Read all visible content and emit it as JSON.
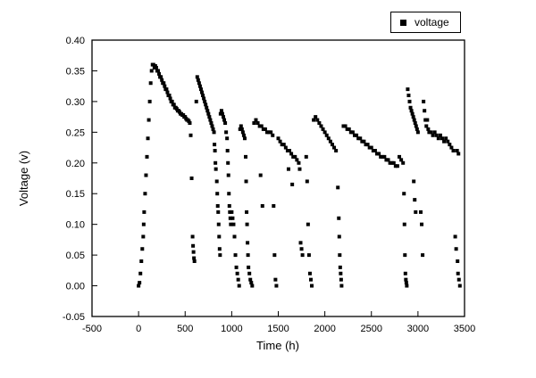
{
  "figure": {
    "background_color": "#ffffff",
    "frame_color": "#000000",
    "marker_color": "#000000"
  },
  "chart_data": {
    "type": "scatter",
    "title": "",
    "xlabel": "Time (h)",
    "ylabel": "Voltage (v)",
    "xlim": [
      -500,
      3500
    ],
    "ylim": [
      -0.05,
      0.4
    ],
    "xticks": [
      -500,
      0,
      500,
      1000,
      1500,
      2000,
      2500,
      3000,
      3500
    ],
    "yticks": [
      -0.05,
      0.0,
      0.05,
      0.1,
      0.15,
      0.2,
      0.25,
      0.3,
      0.35,
      0.4
    ],
    "grid": false,
    "legend": {
      "position": "top-right",
      "entries": [
        {
          "label": "voltage",
          "marker": "square",
          "color": "#000000"
        }
      ]
    },
    "marker": {
      "shape": "square",
      "size": 4,
      "color": "#000000"
    },
    "series": [
      {
        "name": "voltage",
        "points": [
          [
            0,
            0.0
          ],
          [
            10,
            0.005
          ],
          [
            20,
            0.02
          ],
          [
            30,
            0.04
          ],
          [
            40,
            0.06
          ],
          [
            50,
            0.08
          ],
          [
            55,
            0.1
          ],
          [
            60,
            0.12
          ],
          [
            70,
            0.15
          ],
          [
            80,
            0.18
          ],
          [
            90,
            0.21
          ],
          [
            100,
            0.24
          ],
          [
            110,
            0.27
          ],
          [
            120,
            0.3
          ],
          [
            130,
            0.33
          ],
          [
            140,
            0.35
          ],
          [
            150,
            0.36
          ],
          [
            160,
            0.36
          ],
          [
            170,
            0.355
          ],
          [
            180,
            0.358
          ],
          [
            190,
            0.355
          ],
          [
            200,
            0.35
          ],
          [
            210,
            0.35
          ],
          [
            220,
            0.345
          ],
          [
            230,
            0.34
          ],
          [
            240,
            0.34
          ],
          [
            250,
            0.335
          ],
          [
            260,
            0.33
          ],
          [
            270,
            0.33
          ],
          [
            280,
            0.325
          ],
          [
            290,
            0.32
          ],
          [
            300,
            0.32
          ],
          [
            310,
            0.315
          ],
          [
            320,
            0.31
          ],
          [
            330,
            0.31
          ],
          [
            340,
            0.305
          ],
          [
            350,
            0.3
          ],
          [
            360,
            0.3
          ],
          [
            370,
            0.295
          ],
          [
            380,
            0.295
          ],
          [
            390,
            0.29
          ],
          [
            400,
            0.29
          ],
          [
            410,
            0.288
          ],
          [
            420,
            0.285
          ],
          [
            430,
            0.285
          ],
          [
            440,
            0.283
          ],
          [
            450,
            0.28
          ],
          [
            460,
            0.28
          ],
          [
            470,
            0.278
          ],
          [
            480,
            0.278
          ],
          [
            490,
            0.275
          ],
          [
            500,
            0.275
          ],
          [
            510,
            0.272
          ],
          [
            520,
            0.27
          ],
          [
            530,
            0.27
          ],
          [
            540,
            0.268
          ],
          [
            550,
            0.265
          ],
          [
            560,
            0.245
          ],
          [
            570,
            0.175
          ],
          [
            580,
            0.08
          ],
          [
            585,
            0.065
          ],
          [
            590,
            0.055
          ],
          [
            595,
            0.045
          ],
          [
            600,
            0.04
          ],
          [
            620,
            0.3
          ],
          [
            630,
            0.34
          ],
          [
            640,
            0.335
          ],
          [
            650,
            0.33
          ],
          [
            660,
            0.325
          ],
          [
            670,
            0.32
          ],
          [
            680,
            0.315
          ],
          [
            690,
            0.31
          ],
          [
            700,
            0.305
          ],
          [
            710,
            0.3
          ],
          [
            720,
            0.295
          ],
          [
            730,
            0.29
          ],
          [
            740,
            0.285
          ],
          [
            750,
            0.28
          ],
          [
            760,
            0.275
          ],
          [
            770,
            0.27
          ],
          [
            780,
            0.265
          ],
          [
            790,
            0.26
          ],
          [
            800,
            0.255
          ],
          [
            810,
            0.25
          ],
          [
            815,
            0.23
          ],
          [
            820,
            0.22
          ],
          [
            825,
            0.2
          ],
          [
            830,
            0.19
          ],
          [
            840,
            0.17
          ],
          [
            845,
            0.15
          ],
          [
            850,
            0.13
          ],
          [
            855,
            0.12
          ],
          [
            860,
            0.1
          ],
          [
            865,
            0.08
          ],
          [
            870,
            0.06
          ],
          [
            875,
            0.05
          ],
          [
            880,
            0.28
          ],
          [
            890,
            0.285
          ],
          [
            900,
            0.28
          ],
          [
            910,
            0.275
          ],
          [
            920,
            0.27
          ],
          [
            930,
            0.265
          ],
          [
            940,
            0.25
          ],
          [
            950,
            0.24
          ],
          [
            955,
            0.22
          ],
          [
            960,
            0.2
          ],
          [
            965,
            0.18
          ],
          [
            970,
            0.15
          ],
          [
            975,
            0.13
          ],
          [
            980,
            0.12
          ],
          [
            985,
            0.11
          ],
          [
            990,
            0.1
          ],
          [
            1000,
            0.12
          ],
          [
            1010,
            0.11
          ],
          [
            1020,
            0.1
          ],
          [
            1030,
            0.08
          ],
          [
            1040,
            0.05
          ],
          [
            1050,
            0.03
          ],
          [
            1060,
            0.02
          ],
          [
            1070,
            0.01
          ],
          [
            1080,
            0.0
          ],
          [
            1090,
            0.255
          ],
          [
            1100,
            0.26
          ],
          [
            1110,
            0.255
          ],
          [
            1120,
            0.25
          ],
          [
            1130,
            0.245
          ],
          [
            1140,
            0.24
          ],
          [
            1150,
            0.21
          ],
          [
            1155,
            0.17
          ],
          [
            1160,
            0.12
          ],
          [
            1165,
            0.1
          ],
          [
            1170,
            0.07
          ],
          [
            1175,
            0.05
          ],
          [
            1180,
            0.03
          ],
          [
            1190,
            0.02
          ],
          [
            1200,
            0.01
          ],
          [
            1210,
            0.005
          ],
          [
            1220,
            0.0
          ],
          [
            1240,
            0.265
          ],
          [
            1260,
            0.27
          ],
          [
            1280,
            0.265
          ],
          [
            1300,
            0.26
          ],
          [
            1310,
            0.18
          ],
          [
            1320,
            0.26
          ],
          [
            1330,
            0.13
          ],
          [
            1340,
            0.255
          ],
          [
            1360,
            0.255
          ],
          [
            1380,
            0.25
          ],
          [
            1400,
            0.25
          ],
          [
            1420,
            0.25
          ],
          [
            1440,
            0.245
          ],
          [
            1450,
            0.13
          ],
          [
            1460,
            0.05
          ],
          [
            1470,
            0.01
          ],
          [
            1480,
            0.0
          ],
          [
            1500,
            0.24
          ],
          [
            1520,
            0.235
          ],
          [
            1540,
            0.23
          ],
          [
            1560,
            0.23
          ],
          [
            1580,
            0.225
          ],
          [
            1600,
            0.22
          ],
          [
            1610,
            0.19
          ],
          [
            1620,
            0.22
          ],
          [
            1640,
            0.215
          ],
          [
            1650,
            0.165
          ],
          [
            1660,
            0.21
          ],
          [
            1680,
            0.21
          ],
          [
            1700,
            0.205
          ],
          [
            1720,
            0.2
          ],
          [
            1730,
            0.19
          ],
          [
            1740,
            0.07
          ],
          [
            1750,
            0.06
          ],
          [
            1760,
            0.05
          ],
          [
            1800,
            0.21
          ],
          [
            1810,
            0.17
          ],
          [
            1820,
            0.1
          ],
          [
            1830,
            0.05
          ],
          [
            1840,
            0.02
          ],
          [
            1850,
            0.01
          ],
          [
            1860,
            0.0
          ],
          [
            1880,
            0.27
          ],
          [
            1900,
            0.275
          ],
          [
            1920,
            0.27
          ],
          [
            1940,
            0.265
          ],
          [
            1960,
            0.26
          ],
          [
            1980,
            0.255
          ],
          [
            2000,
            0.25
          ],
          [
            2020,
            0.245
          ],
          [
            2040,
            0.24
          ],
          [
            2060,
            0.235
          ],
          [
            2080,
            0.23
          ],
          [
            2100,
            0.225
          ],
          [
            2120,
            0.22
          ],
          [
            2140,
            0.16
          ],
          [
            2150,
            0.11
          ],
          [
            2155,
            0.08
          ],
          [
            2160,
            0.05
          ],
          [
            2165,
            0.03
          ],
          [
            2170,
            0.02
          ],
          [
            2175,
            0.01
          ],
          [
            2180,
            0.0
          ],
          [
            2200,
            0.26
          ],
          [
            2220,
            0.26
          ],
          [
            2240,
            0.255
          ],
          [
            2260,
            0.255
          ],
          [
            2280,
            0.25
          ],
          [
            2300,
            0.25
          ],
          [
            2320,
            0.245
          ],
          [
            2340,
            0.245
          ],
          [
            2360,
            0.24
          ],
          [
            2380,
            0.24
          ],
          [
            2400,
            0.235
          ],
          [
            2420,
            0.235
          ],
          [
            2440,
            0.23
          ],
          [
            2460,
            0.23
          ],
          [
            2480,
            0.225
          ],
          [
            2500,
            0.225
          ],
          [
            2520,
            0.22
          ],
          [
            2540,
            0.22
          ],
          [
            2560,
            0.215
          ],
          [
            2580,
            0.215
          ],
          [
            2600,
            0.21
          ],
          [
            2620,
            0.21
          ],
          [
            2640,
            0.21
          ],
          [
            2660,
            0.205
          ],
          [
            2680,
            0.205
          ],
          [
            2700,
            0.2
          ],
          [
            2720,
            0.2
          ],
          [
            2740,
            0.2
          ],
          [
            2760,
            0.195
          ],
          [
            2780,
            0.195
          ],
          [
            2800,
            0.21
          ],
          [
            2820,
            0.205
          ],
          [
            2840,
            0.2
          ],
          [
            2850,
            0.15
          ],
          [
            2855,
            0.1
          ],
          [
            2860,
            0.05
          ],
          [
            2865,
            0.02
          ],
          [
            2870,
            0.01
          ],
          [
            2875,
            0.005
          ],
          [
            2880,
            0.0
          ],
          [
            2890,
            0.32
          ],
          [
            2900,
            0.31
          ],
          [
            2910,
            0.3
          ],
          [
            2920,
            0.29
          ],
          [
            2930,
            0.285
          ],
          [
            2940,
            0.28
          ],
          [
            2950,
            0.275
          ],
          [
            2955,
            0.17
          ],
          [
            2960,
            0.27
          ],
          [
            2965,
            0.14
          ],
          [
            2970,
            0.265
          ],
          [
            2975,
            0.12
          ],
          [
            2980,
            0.26
          ],
          [
            2990,
            0.255
          ],
          [
            3000,
            0.25
          ],
          [
            3030,
            0.12
          ],
          [
            3040,
            0.1
          ],
          [
            3050,
            0.05
          ],
          [
            3060,
            0.3
          ],
          [
            3070,
            0.285
          ],
          [
            3080,
            0.27
          ],
          [
            3090,
            0.26
          ],
          [
            3100,
            0.27
          ],
          [
            3110,
            0.255
          ],
          [
            3120,
            0.25
          ],
          [
            3140,
            0.25
          ],
          [
            3160,
            0.245
          ],
          [
            3180,
            0.25
          ],
          [
            3200,
            0.245
          ],
          [
            3220,
            0.24
          ],
          [
            3240,
            0.245
          ],
          [
            3260,
            0.24
          ],
          [
            3280,
            0.235
          ],
          [
            3300,
            0.24
          ],
          [
            3320,
            0.235
          ],
          [
            3340,
            0.23
          ],
          [
            3360,
            0.225
          ],
          [
            3380,
            0.22
          ],
          [
            3400,
            0.08
          ],
          [
            3410,
            0.06
          ],
          [
            3420,
            0.22
          ],
          [
            3425,
            0.04
          ],
          [
            3430,
            0.02
          ],
          [
            3435,
            0.215
          ],
          [
            3440,
            0.01
          ],
          [
            3450,
            0.0
          ]
        ]
      }
    ]
  }
}
